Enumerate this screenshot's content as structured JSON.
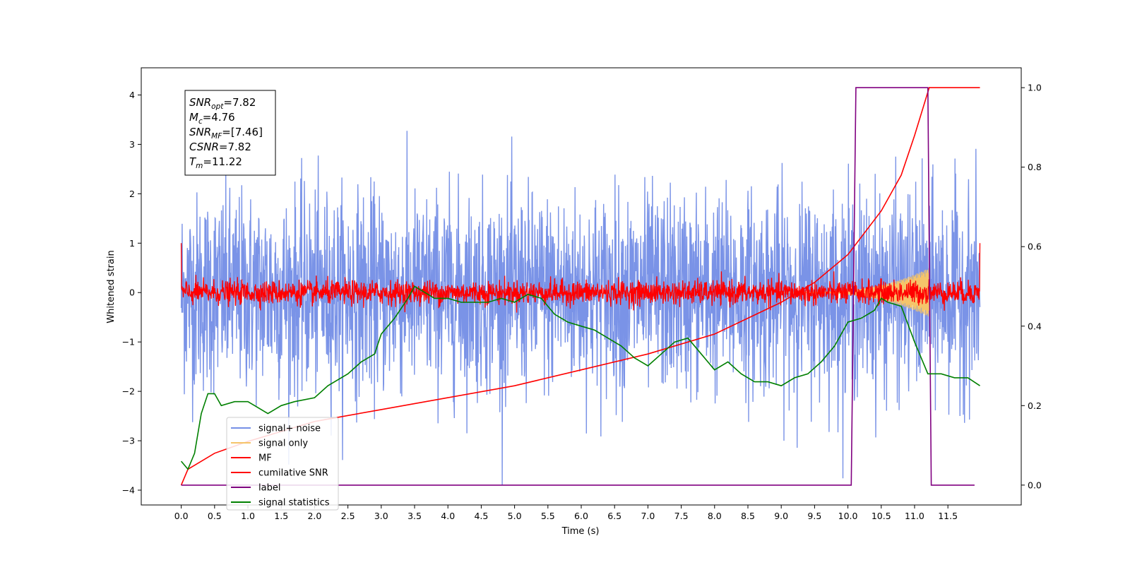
{
  "chart_data": {
    "type": "line",
    "xlabel": "Time (s)",
    "ylabel": "Whitened strain",
    "xlim": [
      -0.6,
      12.6
    ],
    "ylim": [
      -4.3,
      4.55
    ],
    "ylim_right": [
      -0.05,
      1.05
    ],
    "x_ticks": [
      "0.0",
      "0.5",
      "1.0",
      "1.5",
      "2.0",
      "2.5",
      "3.0",
      "3.5",
      "4.0",
      "4.5",
      "5.0",
      "5.5",
      "6.0",
      "6.5",
      "7.0",
      "7.5",
      "8.0",
      "8.5",
      "9.0",
      "9.5",
      "10.0",
      "10.5",
      "11.0",
      "11.5"
    ],
    "y_ticks_left": [
      4,
      3,
      2,
      1,
      0,
      -1,
      -2,
      -3,
      -4
    ],
    "y_ticks_right": [
      "0.0",
      "0.2",
      "0.4",
      "0.6",
      "0.8",
      "1.0"
    ],
    "grid": false,
    "legend_position": "lower-left",
    "info_box": {
      "position": "top-left",
      "lines": [
        {
          "base": "SNR",
          "sub": "opt",
          "value": "=7.82"
        },
        {
          "base": "M",
          "sub": "c",
          "value": "=4.76"
        },
        {
          "base": "SNR",
          "sub": "MF",
          "value": "=[7.46]"
        },
        {
          "base": "CSNR",
          "sub": "",
          "value": "=7.82"
        },
        {
          "base": "T",
          "sub": "m",
          "value": "=11.22"
        }
      ]
    },
    "series": [
      {
        "name": "signal+ noise",
        "color": "#7690e6",
        "axis": "left",
        "description_points": {
          "x_start": 0.0,
          "x_end": 11.98,
          "noise_sigma": 1.0,
          "mean": 0.0
        }
      },
      {
        "name": "signal only",
        "color": "#f5c46a",
        "axis": "left",
        "chirp": {
          "x_start": 9.0,
          "x_end": 11.22,
          "peak_amplitude": 0.5
        }
      },
      {
        "name": "MF",
        "color": "#ff0000",
        "axis": "left",
        "noise_sigma": 0.12,
        "edge_value": 1.0
      },
      {
        "name": "cumilative SNR",
        "color": "#ff0000",
        "axis": "right",
        "x": [
          0.0,
          0.1,
          0.5,
          1.0,
          2.0,
          3.0,
          4.0,
          5.0,
          6.0,
          7.0,
          8.0,
          9.0,
          9.5,
          10.0,
          10.5,
          10.8,
          11.0,
          11.22,
          11.98
        ],
        "values": [
          0.0,
          0.04,
          0.08,
          0.11,
          0.16,
          0.19,
          0.22,
          0.25,
          0.29,
          0.33,
          0.38,
          0.46,
          0.51,
          0.58,
          0.69,
          0.78,
          0.88,
          1.0,
          1.0
        ]
      },
      {
        "name": "label",
        "color": "#800080",
        "axis": "right",
        "x": [
          0.0,
          10.05,
          10.12,
          11.2,
          11.25,
          11.9
        ],
        "values": [
          0.0,
          0.0,
          1.0,
          1.0,
          0.0,
          0.0
        ]
      },
      {
        "name": "signal statistics",
        "color": "#008000",
        "axis": "right",
        "x": [
          0.0,
          0.1,
          0.2,
          0.3,
          0.4,
          0.5,
          0.6,
          0.8,
          1.0,
          1.1,
          1.3,
          1.5,
          1.7,
          2.0,
          2.2,
          2.5,
          2.7,
          2.9,
          3.0,
          3.2,
          3.4,
          3.5,
          3.6,
          3.8,
          4.0,
          4.2,
          4.4,
          4.6,
          4.8,
          5.0,
          5.2,
          5.4,
          5.6,
          5.8,
          6.0,
          6.2,
          6.4,
          6.6,
          6.8,
          7.0,
          7.2,
          7.4,
          7.6,
          7.8,
          8.0,
          8.2,
          8.4,
          8.6,
          8.8,
          9.0,
          9.2,
          9.4,
          9.6,
          9.8,
          10.0,
          10.2,
          10.4,
          10.5,
          10.6,
          10.8,
          11.0,
          11.2,
          11.4,
          11.6,
          11.8,
          11.98
        ],
        "values": [
          0.06,
          0.04,
          0.08,
          0.18,
          0.23,
          0.23,
          0.2,
          0.21,
          0.21,
          0.2,
          0.18,
          0.2,
          0.21,
          0.22,
          0.25,
          0.28,
          0.31,
          0.33,
          0.38,
          0.42,
          0.47,
          0.5,
          0.49,
          0.47,
          0.47,
          0.46,
          0.46,
          0.46,
          0.47,
          0.46,
          0.48,
          0.47,
          0.43,
          0.41,
          0.4,
          0.39,
          0.37,
          0.35,
          0.32,
          0.3,
          0.33,
          0.36,
          0.37,
          0.33,
          0.29,
          0.31,
          0.28,
          0.26,
          0.26,
          0.25,
          0.27,
          0.28,
          0.31,
          0.35,
          0.41,
          0.42,
          0.44,
          0.47,
          0.46,
          0.45,
          0.36,
          0.28,
          0.28,
          0.27,
          0.27,
          0.25
        ]
      }
    ]
  }
}
